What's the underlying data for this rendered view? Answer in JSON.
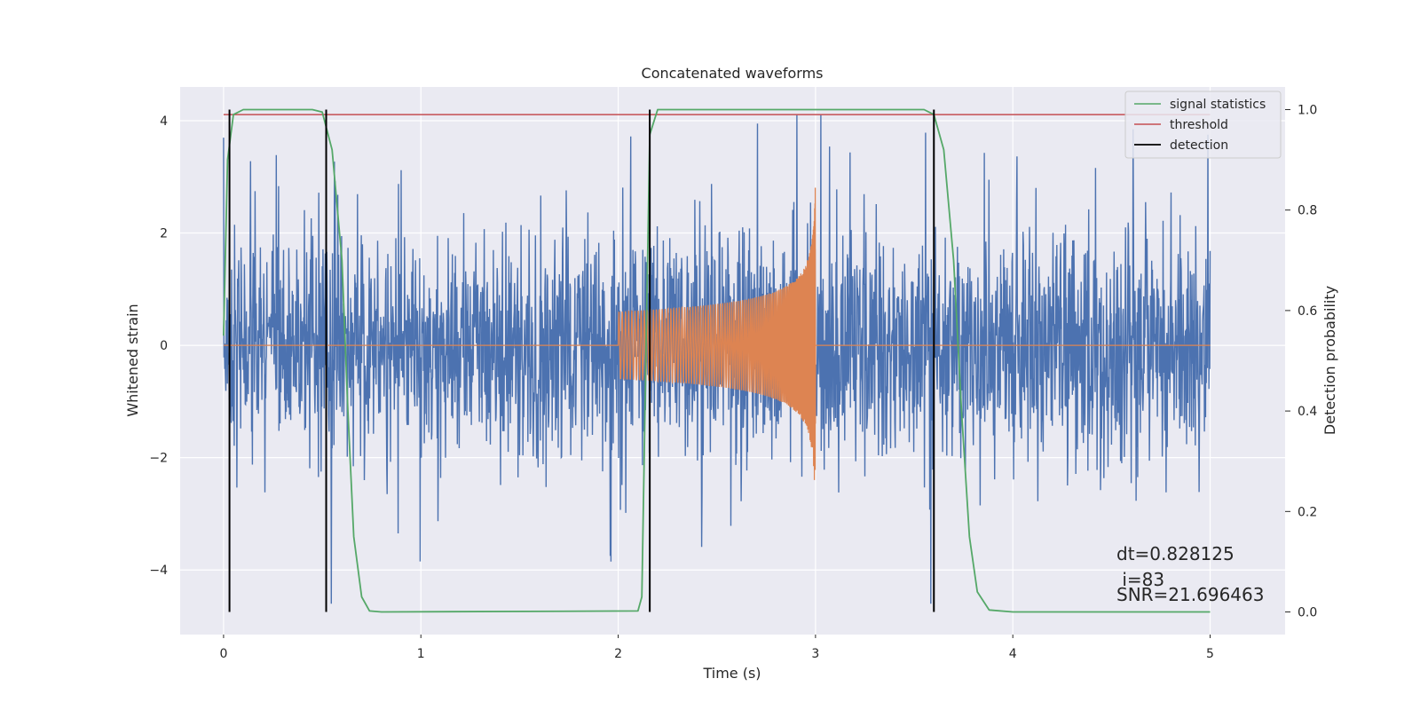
{
  "chart_data": {
    "type": "line",
    "title": "Concatenated waveforms",
    "xlabel": "Time (s)",
    "ylabel": "Whitened strain",
    "y2label": "Detection probability",
    "xlim": [
      -0.22,
      5.38
    ],
    "ylim": [
      -5.15,
      4.6
    ],
    "y2lim": [
      -0.045,
      1.045
    ],
    "xticks": [
      0,
      1,
      2,
      3,
      4,
      5
    ],
    "yticks": [
      -4,
      -2,
      0,
      2,
      4
    ],
    "y2ticks": [
      0.0,
      0.2,
      0.4,
      0.6,
      0.8,
      1.0
    ],
    "xtick_labels": [
      "0",
      "1",
      "2",
      "3",
      "4",
      "5"
    ],
    "ytick_labels": [
      "−4",
      "−2",
      "0",
      "2",
      "4"
    ],
    "y2tick_labels": [
      "0.0",
      "0.2",
      "0.4",
      "0.6",
      "0.8",
      "1.0"
    ],
    "grid": true,
    "legend_position": "top-right",
    "legend": [
      {
        "label": "signal statistics",
        "color": "#55a868"
      },
      {
        "label": "threshold",
        "color": "#c44e52"
      },
      {
        "label": "detection",
        "color": "#000000"
      }
    ],
    "colors": {
      "noise": "#4c72b0",
      "template": "#dd8452",
      "signal_statistics": "#55a868",
      "threshold": "#c44e52",
      "detection": "#000000",
      "plot_background": "#eaeaf2",
      "grid": "#ffffff"
    },
    "series": [
      {
        "name": "signal statistics",
        "axis": "right",
        "points": [
          [
            0.0,
            0.55
          ],
          [
            0.02,
            0.9
          ],
          [
            0.05,
            0.99
          ],
          [
            0.1,
            1.0
          ],
          [
            0.45,
            1.0
          ],
          [
            0.5,
            0.995
          ],
          [
            0.55,
            0.92
          ],
          [
            0.6,
            0.7
          ],
          [
            0.63,
            0.4
          ],
          [
            0.66,
            0.15
          ],
          [
            0.7,
            0.03
          ],
          [
            0.74,
            0.002
          ],
          [
            0.8,
            0.0
          ],
          [
            2.1,
            0.002
          ],
          [
            2.12,
            0.03
          ],
          [
            2.14,
            0.5
          ],
          [
            2.16,
            0.95
          ],
          [
            2.2,
            1.0
          ],
          [
            3.55,
            1.0
          ],
          [
            3.6,
            0.99
          ],
          [
            3.65,
            0.92
          ],
          [
            3.7,
            0.7
          ],
          [
            3.74,
            0.4
          ],
          [
            3.78,
            0.15
          ],
          [
            3.82,
            0.04
          ],
          [
            3.88,
            0.004
          ],
          [
            4.0,
            0.0
          ],
          [
            5.0,
            0.0
          ]
        ]
      },
      {
        "name": "threshold",
        "axis": "right",
        "x": [
          0.0,
          5.0
        ],
        "y": [
          0.99,
          0.99
        ]
      },
      {
        "name": "detection",
        "axis": "right",
        "type": "vlines",
        "x": [
          0.03,
          0.52,
          2.16,
          3.6
        ],
        "ymin": 0.0,
        "ymax": 1.0
      }
    ],
    "whitened_strain": {
      "noise": {
        "x_range": [
          0.0,
          5.0
        ],
        "typical_envelope": [
          -1.0,
          1.0
        ],
        "peak_range": [
          -4.6,
          4.1
        ]
      },
      "template": {
        "x_range": [
          2.0,
          3.0
        ],
        "amplitude_start": 0.6,
        "amplitude_peak": 2.9,
        "amplitude_min_at_end": -2.3
      }
    },
    "annotations": [
      "dt=0.828125",
      " i=83",
      "SNR=21.696463"
    ]
  }
}
